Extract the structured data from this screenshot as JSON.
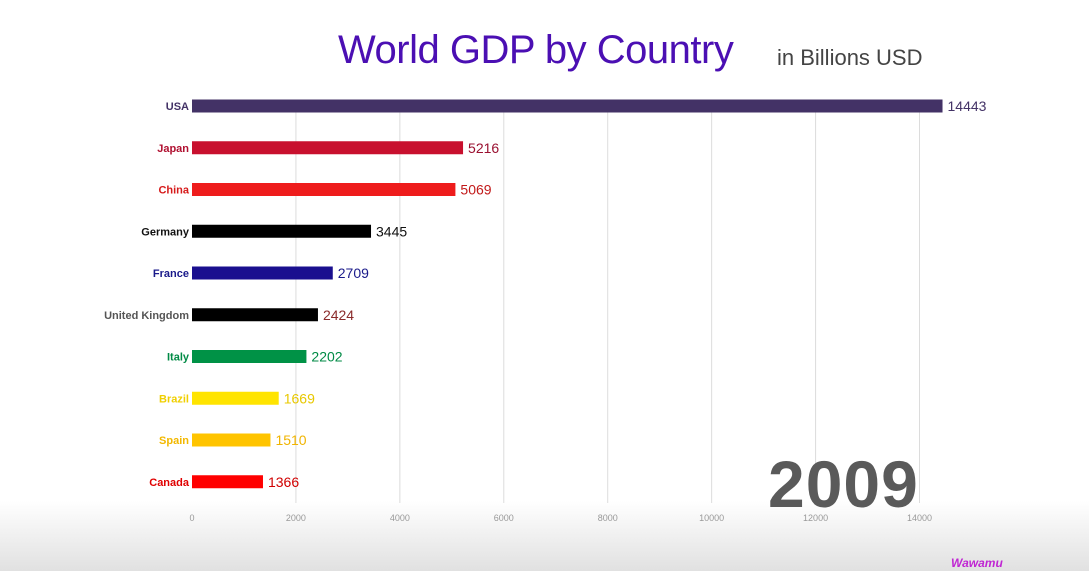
{
  "chart_data": {
    "type": "bar",
    "orientation": "horizontal",
    "title": "World GDP by Country",
    "subtitle": "in Billions USD",
    "year": "2009",
    "categories": [
      "USA",
      "Japan",
      "China",
      "Germany",
      "France",
      "United Kingdom",
      "Italy",
      "Brazil",
      "Spain",
      "Canada"
    ],
    "values": [
      14443,
      5216,
      5069,
      3445,
      2709,
      2424,
      2202,
      1669,
      1510,
      1366
    ],
    "colors": [
      "#433266",
      "#c8102e",
      "#ee1c1c",
      "#000000",
      "#1a0f8f",
      "#000000",
      "#009246",
      "#ffe400",
      "#ffc400",
      "#ff0000"
    ],
    "label_colors": [
      "#433266",
      "#b01030",
      "#d61a1a",
      "#111111",
      "#1a1a8a",
      "#555555",
      "#008a45",
      "#f0cf00",
      "#f2b800",
      "#e00000"
    ],
    "value_label_colors": [
      "#433266",
      "#9a1030",
      "#c21a1a",
      "#111111",
      "#1a1a8a",
      "#8a2a2a",
      "#008a45",
      "#e8c800",
      "#f0b400",
      "#d00000"
    ],
    "xlim": [
      0,
      15000
    ],
    "xticks": [
      0,
      2000,
      4000,
      6000,
      8000,
      10000,
      12000,
      14000
    ],
    "xtick_labels": [
      "0",
      "2000",
      "4000",
      "6000",
      "8000",
      "10000",
      "12000",
      "14000"
    ],
    "grid": true,
    "xlabel": "",
    "ylabel": ""
  },
  "watermark": "Wawamu"
}
